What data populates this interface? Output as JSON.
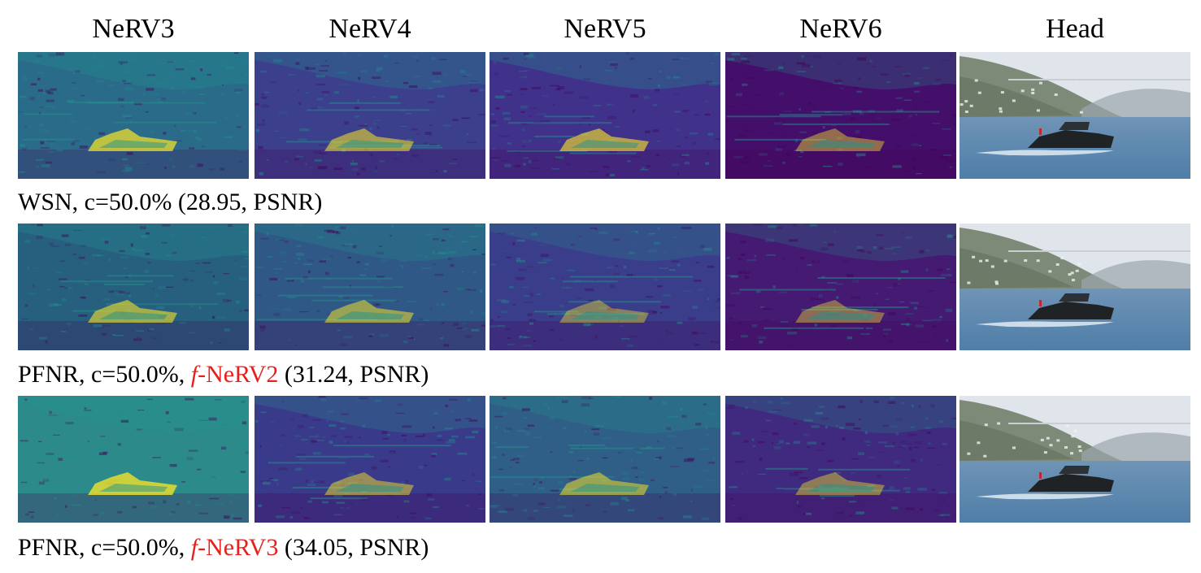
{
  "columns": [
    "NeRV3",
    "NeRV4",
    "NeRV5",
    "NeRV6",
    "Head"
  ],
  "rows": [
    {
      "caption_prefix": "WSN, c=50.0% (28.95, PSNR)",
      "caption_accent_f": "",
      "caption_accent_rest": "",
      "caption_suffix": "",
      "tiles": [
        {
          "kind": "heatmap",
          "bright": 0.75,
          "bg": "#2b6b8a"
        },
        {
          "kind": "heatmap",
          "bright": 0.5,
          "bg": "#3b3f8c"
        },
        {
          "kind": "heatmap",
          "bright": 0.6,
          "bg": "#40318a"
        },
        {
          "kind": "heatmap",
          "bright": 0.3,
          "bg": "#440f6b"
        },
        {
          "kind": "photo"
        }
      ]
    },
    {
      "caption_prefix": "PFNR, c=50.0%, ",
      "caption_accent_f": "f",
      "caption_accent_rest": "-NeRV2",
      "caption_suffix": " (31.24, PSNR)",
      "tiles": [
        {
          "kind": "heatmap",
          "bright": 0.55,
          "bg": "#27607f"
        },
        {
          "kind": "heatmap",
          "bright": 0.45,
          "bg": "#2f5886"
        },
        {
          "kind": "heatmap",
          "bright": 0.25,
          "bg": "#3a3e8a"
        },
        {
          "kind": "heatmap",
          "bright": 0.25,
          "bg": "#441a73"
        },
        {
          "kind": "photo"
        }
      ]
    },
    {
      "caption_prefix": "PFNR, c=50.0%, ",
      "caption_accent_f": "f",
      "caption_accent_rest": "-NeRV3",
      "caption_suffix": " (34.05, PSNR)",
      "tiles": [
        {
          "kind": "heatmap",
          "bright": 0.85,
          "bg": "#2d8a8a"
        },
        {
          "kind": "heatmap",
          "bright": 0.4,
          "bg": "#3a3a8a"
        },
        {
          "kind": "heatmap",
          "bright": 0.45,
          "bg": "#2f5f87"
        },
        {
          "kind": "heatmap",
          "bright": 0.3,
          "bg": "#3f2a7f"
        },
        {
          "kind": "photo"
        }
      ]
    }
  ],
  "colors": {
    "accent": "#e8201c",
    "viridis_dark": "#440154",
    "viridis_mid": "#21918c",
    "viridis_bright": "#fde725"
  }
}
